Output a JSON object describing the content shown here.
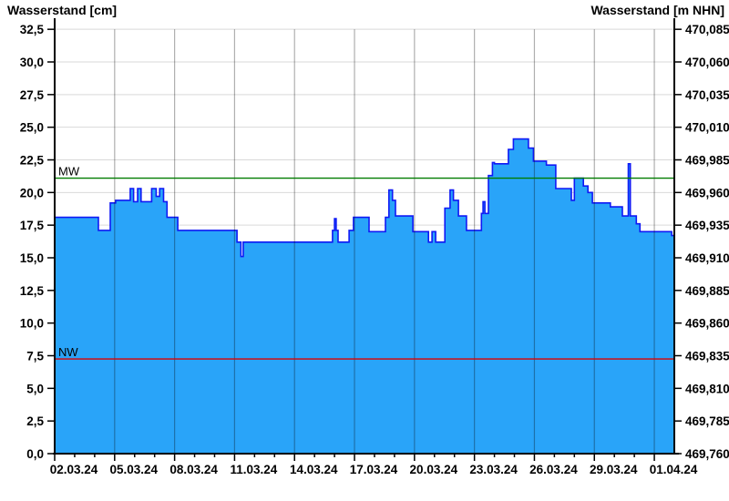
{
  "titles": {
    "left": "Wasserstand [cm]",
    "right": "Wasserstand [m NHN]"
  },
  "chart_data": {
    "type": "area",
    "series_name": "Wasserstand",
    "step_mode": "step-after",
    "x_unit_days_since": "02.03.24 00:00",
    "x_range_days": [
      0,
      31
    ],
    "x_tick_days": [
      0,
      3,
      6,
      9,
      12,
      15,
      18,
      21,
      24,
      27,
      30
    ],
    "x_tick_labels": [
      "02.03.24",
      "05.03.24",
      "08.03.24",
      "11.03.24",
      "14.03.24",
      "17.03.24",
      "20.03.24",
      "23.03.24",
      "26.03.24",
      "29.03.24",
      "01.04.24"
    ],
    "x_gridline_days": [
      3,
      6,
      9,
      12,
      15,
      18,
      21,
      24,
      27,
      30
    ],
    "y_left": {
      "label": "Wasserstand [cm]",
      "range": [
        0,
        32.5
      ],
      "tick_step": 2.5,
      "tick_labels": [
        "0,0",
        "2,5",
        "5,0",
        "7,5",
        "10,0",
        "12,5",
        "15,0",
        "17,5",
        "20,0",
        "22,5",
        "25,0",
        "27,5",
        "30,0",
        "32,5"
      ]
    },
    "y_right": {
      "label": "Wasserstand [m NHN]",
      "range": [
        469.76,
        470.085
      ],
      "tick_step": 0.025,
      "tick_labels": [
        "469,760",
        "469,785",
        "469,810",
        "469,835",
        "469,860",
        "469,885",
        "469,910",
        "469,935",
        "469,960",
        "469,985",
        "470,010",
        "470,035",
        "470,060",
        "470,085"
      ]
    },
    "reference_lines": [
      {
        "name": "MW",
        "value_cm": 21.1,
        "color": "#007c00"
      },
      {
        "name": "NW",
        "value_cm": 7.25,
        "color": "#dd0000"
      }
    ],
    "steps_day_value_cm": [
      [
        0.0,
        18.1
      ],
      [
        2.19,
        17.1
      ],
      [
        2.78,
        19.2
      ],
      [
        3.05,
        19.4
      ],
      [
        3.78,
        20.3
      ],
      [
        3.95,
        19.3
      ],
      [
        4.15,
        20.3
      ],
      [
        4.32,
        19.3
      ],
      [
        4.85,
        20.3
      ],
      [
        5.08,
        19.7
      ],
      [
        5.25,
        20.3
      ],
      [
        5.45,
        19.3
      ],
      [
        5.62,
        18.1
      ],
      [
        6.16,
        17.1
      ],
      [
        9.12,
        16.2
      ],
      [
        9.32,
        15.1
      ],
      [
        9.43,
        16.2
      ],
      [
        13.9,
        17.1
      ],
      [
        14.0,
        18.0
      ],
      [
        14.08,
        17.1
      ],
      [
        14.18,
        16.2
      ],
      [
        14.73,
        17.1
      ],
      [
        14.95,
        18.1
      ],
      [
        15.73,
        17.0
      ],
      [
        16.55,
        18.1
      ],
      [
        16.72,
        20.2
      ],
      [
        16.9,
        19.4
      ],
      [
        17.05,
        18.2
      ],
      [
        17.92,
        17.0
      ],
      [
        18.7,
        16.2
      ],
      [
        18.88,
        17.0
      ],
      [
        19.06,
        16.2
      ],
      [
        19.52,
        18.8
      ],
      [
        19.78,
        20.2
      ],
      [
        19.95,
        19.4
      ],
      [
        20.2,
        18.2
      ],
      [
        20.6,
        17.1
      ],
      [
        21.35,
        18.4
      ],
      [
        21.43,
        19.3
      ],
      [
        21.52,
        18.4
      ],
      [
        21.7,
        21.3
      ],
      [
        21.9,
        22.3
      ],
      [
        22.0,
        22.2
      ],
      [
        22.7,
        23.3
      ],
      [
        22.95,
        24.1
      ],
      [
        23.7,
        23.4
      ],
      [
        23.95,
        22.4
      ],
      [
        24.6,
        22.1
      ],
      [
        25.07,
        20.3
      ],
      [
        25.85,
        19.4
      ],
      [
        26.0,
        21.1
      ],
      [
        26.45,
        20.5
      ],
      [
        26.68,
        20.0
      ],
      [
        26.9,
        19.2
      ],
      [
        27.8,
        18.9
      ],
      [
        28.4,
        18.2
      ],
      [
        28.7,
        22.2
      ],
      [
        28.8,
        18.2
      ],
      [
        29.1,
        17.6
      ],
      [
        29.28,
        17.0
      ],
      [
        30.87,
        16.7
      ]
    ],
    "colors": {
      "fill": "#29a4f9",
      "stroke": "#0f19f5",
      "h_grid": "#d9d9d9",
      "v_grid": "#afafaf",
      "axis": "#000000"
    },
    "grid": true,
    "legend": "none"
  }
}
